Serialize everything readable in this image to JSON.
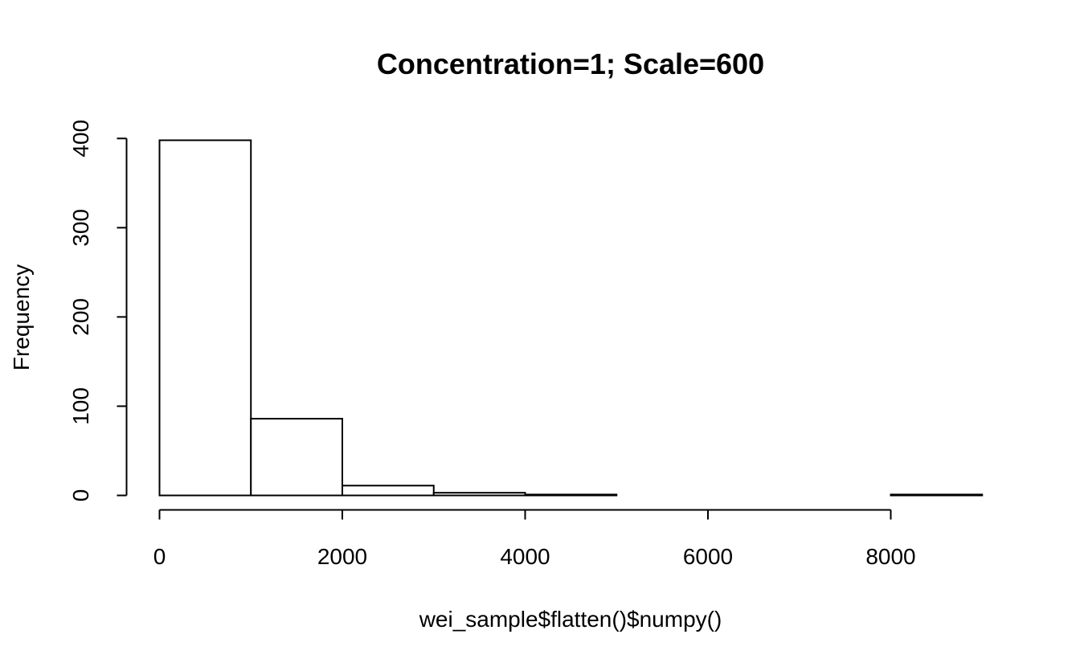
{
  "chart_data": {
    "type": "bar",
    "title": "Concentration=1; Scale=600",
    "xlabel": "wei_sample$flatten()$numpy()",
    "ylabel": "Frequency",
    "bins": [
      {
        "x0": 0,
        "x1": 1000,
        "count": 398
      },
      {
        "x0": 1000,
        "x1": 2000,
        "count": 86
      },
      {
        "x0": 2000,
        "x1": 3000,
        "count": 11
      },
      {
        "x0": 3000,
        "x1": 4000,
        "count": 3
      },
      {
        "x0": 4000,
        "x1": 5000,
        "count": 1
      },
      {
        "x0": 5000,
        "x1": 6000,
        "count": 0
      },
      {
        "x0": 6000,
        "x1": 7000,
        "count": 0
      },
      {
        "x0": 7000,
        "x1": 8000,
        "count": 0
      },
      {
        "x0": 8000,
        "x1": 9000,
        "count": 1
      }
    ],
    "xticks": [
      0,
      2000,
      4000,
      6000,
      8000
    ],
    "xtick_labels": [
      "0",
      "2000",
      "4000",
      "6000",
      "8000"
    ],
    "yticks": [
      0,
      100,
      200,
      300,
      400
    ],
    "ytick_labels": [
      "0",
      "100",
      "200",
      "300",
      "400"
    ],
    "xlim": [
      0,
      8000
    ],
    "ylim": [
      0,
      400
    ],
    "grid": false,
    "legend": "none",
    "colors": {
      "bar_fill": "#ffffff",
      "bar_stroke": "#000000",
      "background": "#ffffff"
    }
  }
}
